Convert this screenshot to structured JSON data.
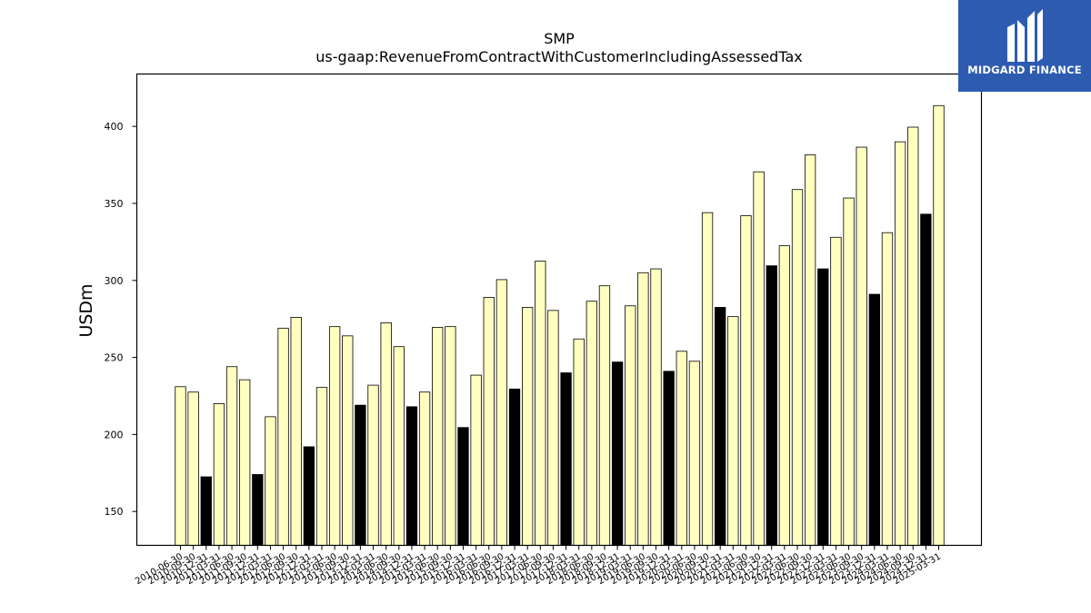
{
  "chart_data": {
    "type": "bar",
    "title": "SMP",
    "subtitle": "us-gaap:RevenueFromContractWithCustomerIncludingAssessedTax",
    "xlabel": "",
    "ylabel": "USDm",
    "ylim": [
      128,
      434
    ],
    "yticks": [
      150,
      200,
      250,
      300,
      350,
      400
    ],
    "grid": false,
    "colors": {
      "quarter": "#ffffc0",
      "annual": "#000000",
      "edge": "#000000"
    },
    "categories": [
      "2010-06-30",
      "2010-09-30",
      "2010-12-31",
      "2011-03-31",
      "2011-06-30",
      "2011-09-30",
      "2011-12-31",
      "2012-03-31",
      "2012-06-30",
      "2012-09-30",
      "2012-12-31",
      "2013-03-31",
      "2013-06-30",
      "2013-09-30",
      "2013-12-31",
      "2014-03-31",
      "2014-06-30",
      "2014-09-30",
      "2014-12-31",
      "2015-03-31",
      "2015-06-30",
      "2015-09-30",
      "2015-12-31",
      "2016-03-31",
      "2016-06-30",
      "2016-09-30",
      "2016-12-31",
      "2017-03-31",
      "2017-06-30",
      "2017-09-30",
      "2017-12-31",
      "2018-03-31",
      "2018-06-30",
      "2018-09-30",
      "2018-12-31",
      "2019-03-31",
      "2019-06-30",
      "2019-09-30",
      "2019-12-31",
      "2020-03-31",
      "2020-06-30",
      "2020-09-30",
      "2020-12-31",
      "2021-03-31",
      "2021-06-30",
      "2021-09-30",
      "2021-12-31",
      "2022-03-31",
      "2022-06-30",
      "2022-09-30",
      "2022-12-31",
      "2023-03-31",
      "2023-06-30",
      "2023-09-30",
      "2023-12-31",
      "2024-03-31",
      "2024-06-30",
      "2024-09-30",
      "2024-12-31",
      "2025-03-31"
    ],
    "values": [
      231,
      227.5,
      172.5,
      220,
      244,
      235.5,
      174,
      211.5,
      269,
      276,
      192,
      230.5,
      270,
      264,
      219,
      232,
      272.5,
      257,
      218,
      227.5,
      269.5,
      270,
      204.5,
      238.5,
      289,
      300.5,
      229.5,
      282.5,
      312.5,
      280.5,
      240,
      262,
      286.5,
      296.5,
      247,
      283.5,
      305,
      307.5,
      241,
      254,
      247.5,
      344,
      282.5,
      276.5,
      342,
      370.5,
      309.5,
      322.5,
      359,
      381.5,
      307.5,
      328,
      353.5,
      386.5,
      291,
      331,
      390,
      399.5,
      343,
      413.5
    ],
    "annual_flags": [
      0,
      0,
      1,
      0,
      0,
      0,
      1,
      0,
      0,
      0,
      1,
      0,
      0,
      0,
      1,
      0,
      0,
      0,
      1,
      0,
      0,
      0,
      1,
      0,
      0,
      0,
      1,
      0,
      0,
      0,
      1,
      0,
      0,
      0,
      1,
      0,
      0,
      0,
      1,
      0,
      0,
      0,
      1,
      0,
      0,
      0,
      1,
      0,
      0,
      0,
      1,
      0,
      0,
      0,
      1,
      0,
      0,
      0,
      1,
      0
    ]
  },
  "logo": {
    "text": "MIDGARD FINANCE",
    "icon": "midgard-m-logo-icon"
  }
}
